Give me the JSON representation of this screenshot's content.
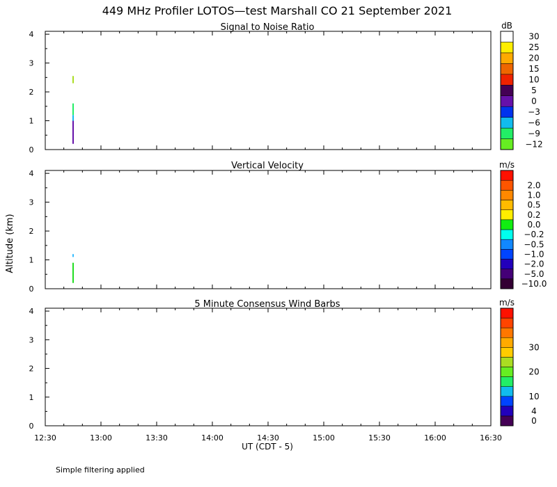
{
  "figure": {
    "title": "449 MHz Profiler LOTOS—test Marshall CO 21 September 2021",
    "ylabel": "Altitude (km)",
    "xlabel": "UT  (CDT - 5)",
    "note": "Simple filtering applied"
  },
  "chart_data": [
    {
      "type": "heatmap",
      "title": "Signal to Noise Ratio",
      "xlabel": "UT  (CDT - 5)",
      "ylabel": "Altitude (km)",
      "x_range": [
        "12:30",
        "16:30"
      ],
      "ylim": [
        0,
        4.1
      ],
      "x_ticks": [
        "12:30",
        "13:00",
        "13:30",
        "14:00",
        "14:30",
        "15:00",
        "15:30",
        "16:00",
        "16:30"
      ],
      "y_ticks": [
        "0",
        "1",
        "2",
        "3",
        "4"
      ],
      "grid": false,
      "colorbar": {
        "unit": "dB",
        "colors": [
          "#66ee22",
          "#22ee66",
          "#11bbee",
          "#0033ee",
          "#6611aa",
          "#440055",
          "#ee2200",
          "#ee6600",
          "#ffaa00",
          "#ffee00",
          "#ffffff"
        ],
        "labels": [
          "−12",
          "−9",
          "−6",
          "−3",
          "0",
          "5",
          "10",
          "15",
          "20",
          "25",
          "30"
        ]
      },
      "segments": [
        {
          "time": "12:45",
          "from_km": 0.2,
          "to_km": 1.0,
          "color": "#6611aa"
        },
        {
          "time": "12:45",
          "from_km": 1.0,
          "to_km": 1.2,
          "color": "#11bbee"
        },
        {
          "time": "12:45",
          "from_km": 1.2,
          "to_km": 1.6,
          "color": "#22ee66"
        },
        {
          "time": "12:45",
          "from_km": 2.3,
          "to_km": 2.55,
          "color": "#aadd22"
        }
      ]
    },
    {
      "type": "heatmap",
      "title": "Vertical Velocity",
      "xlabel": "UT  (CDT - 5)",
      "ylabel": "Altitude (km)",
      "x_range": [
        "12:30",
        "16:30"
      ],
      "ylim": [
        0,
        4.1
      ],
      "x_ticks": [
        "12:30",
        "13:00",
        "13:30",
        "14:00",
        "14:30",
        "15:00",
        "15:30",
        "16:00",
        "16:30"
      ],
      "y_ticks": [
        "0",
        "1",
        "2",
        "3",
        "4"
      ],
      "grid": false,
      "colorbar": {
        "unit": "m/s",
        "colors": [
          "#330033",
          "#440077",
          "#2200bb",
          "#0044ff",
          "#1188ff",
          "#00ffee",
          "#11ee11",
          "#ffee00",
          "#ffbb00",
          "#ff8800",
          "#ff5500",
          "#ff1100"
        ],
        "labels": [
          "−10.0",
          "−5.0",
          "−2.0",
          "−1.0",
          "−0.5",
          "−0.2",
          "0.0",
          "0.2",
          "0.5",
          "1.0",
          "2.0"
        ]
      },
      "segments": [
        {
          "time": "12:45",
          "from_km": 0.2,
          "to_km": 0.9,
          "color": "#22dd22"
        },
        {
          "time": "12:45",
          "from_km": 1.1,
          "to_km": 1.2,
          "color": "#33bbff"
        }
      ]
    },
    {
      "type": "heatmap",
      "title": "5 Minute Consensus Wind Barbs",
      "xlabel": "UT  (CDT - 5)",
      "ylabel": "Altitude (km)",
      "x_range": [
        "12:30",
        "16:30"
      ],
      "ylim": [
        0,
        4.1
      ],
      "x_ticks": [
        "12:30",
        "13:00",
        "13:30",
        "14:00",
        "14:30",
        "15:00",
        "15:30",
        "16:00",
        "16:30"
      ],
      "y_ticks": [
        "0",
        "1",
        "2",
        "3",
        "4"
      ],
      "grid": false,
      "colorbar": {
        "unit": "m/s",
        "colors": [
          "#440055",
          "#2200bb",
          "#0044ff",
          "#11bbee",
          "#22ee66",
          "#66ee22",
          "#aadd22",
          "#ffcc00",
          "#ffaa00",
          "#ff7700",
          "#ff4400",
          "#ff1100"
        ],
        "labels": [
          "0",
          "4",
          "10",
          "20",
          "30"
        ],
        "label_positions": [
          0,
          1,
          2.5,
          5,
          7.5
        ]
      },
      "segments": []
    }
  ]
}
